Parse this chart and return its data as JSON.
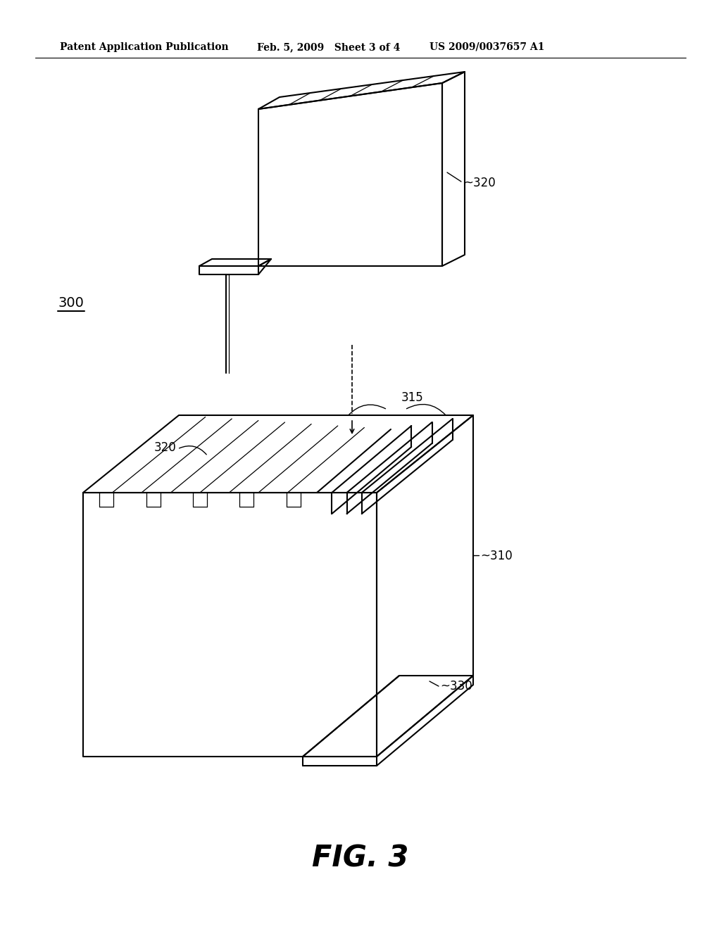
{
  "bg_color": "#ffffff",
  "line_color": "#000000",
  "header_text": "Patent Application Publication",
  "header_date": "Feb. 5, 2009",
  "header_sheet": "Sheet 3 of 4",
  "header_patent": "US 2009/0037657 A1",
  "fig_label": "FIG. 3",
  "label_300": "300",
  "label_310": "310",
  "label_315": "315",
  "label_320": "320",
  "label_330": "330",
  "lw_main": 1.5,
  "lw_thin": 0.9,
  "fontsize_header": 10,
  "fontsize_label": 12,
  "fontsize_fig": 30
}
